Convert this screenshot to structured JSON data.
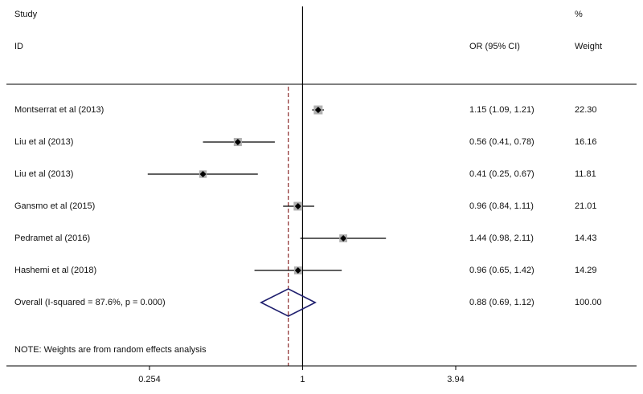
{
  "header": {
    "study": "Study",
    "id": "ID",
    "or_label": "OR (95% CI)",
    "pct": "%",
    "weight": "Weight"
  },
  "note": "NOTE: Weights are from random effects analysis",
  "chart_data": {
    "type": "forest",
    "scale": "log",
    "xlim": [
      0.254,
      3.94
    ],
    "x_ticks": [
      {
        "value": 0.254,
        "label": "0.254"
      },
      {
        "value": 1,
        "label": "1"
      },
      {
        "value": 3.94,
        "label": "3.94"
      }
    ],
    "studies": [
      {
        "name": "Montserrat et al  (2013)",
        "or": 1.15,
        "lower": 1.09,
        "upper": 1.21,
        "ci_text": "1.15 (1.09, 1.21)",
        "weight": 22.3,
        "weight_text": "22.30"
      },
      {
        "name": "Liu et al  (2013)",
        "or": 0.56,
        "lower": 0.41,
        "upper": 0.78,
        "ci_text": "0.56 (0.41, 0.78)",
        "weight": 16.16,
        "weight_text": "16.16"
      },
      {
        "name": "Liu et al  (2013)",
        "or": 0.41,
        "lower": 0.25,
        "upper": 0.67,
        "ci_text": "0.41 (0.25, 0.67)",
        "weight": 11.81,
        "weight_text": "11.81"
      },
      {
        "name": "Gansmo et al  (2015)",
        "or": 0.96,
        "lower": 0.84,
        "upper": 1.11,
        "ci_text": "0.96 (0.84, 1.11)",
        "weight": 21.01,
        "weight_text": "21.01"
      },
      {
        "name": "Pedramet al  (2016)",
        "or": 1.44,
        "lower": 0.98,
        "upper": 2.11,
        "ci_text": "1.44 (0.98, 2.11)",
        "weight": 14.43,
        "weight_text": "14.43"
      },
      {
        "name": "Hashemi et al  (2018)",
        "or": 0.96,
        "lower": 0.65,
        "upper": 1.42,
        "ci_text": "0.96 (0.65, 1.42)",
        "weight": 14.29,
        "weight_text": "14.29"
      }
    ],
    "overall": {
      "name": "Overall  (I-squared = 87.6%, p = 0.000)",
      "or": 0.88,
      "lower": 0.69,
      "upper": 1.12,
      "ci_text": "0.88 (0.69, 1.12)",
      "weight_text": "100.00"
    },
    "colors": {
      "diamond": "#1f1f6e",
      "overall_line": "#8b2a2a",
      "marks": "#000000",
      "box": "#b0b0b0"
    }
  }
}
